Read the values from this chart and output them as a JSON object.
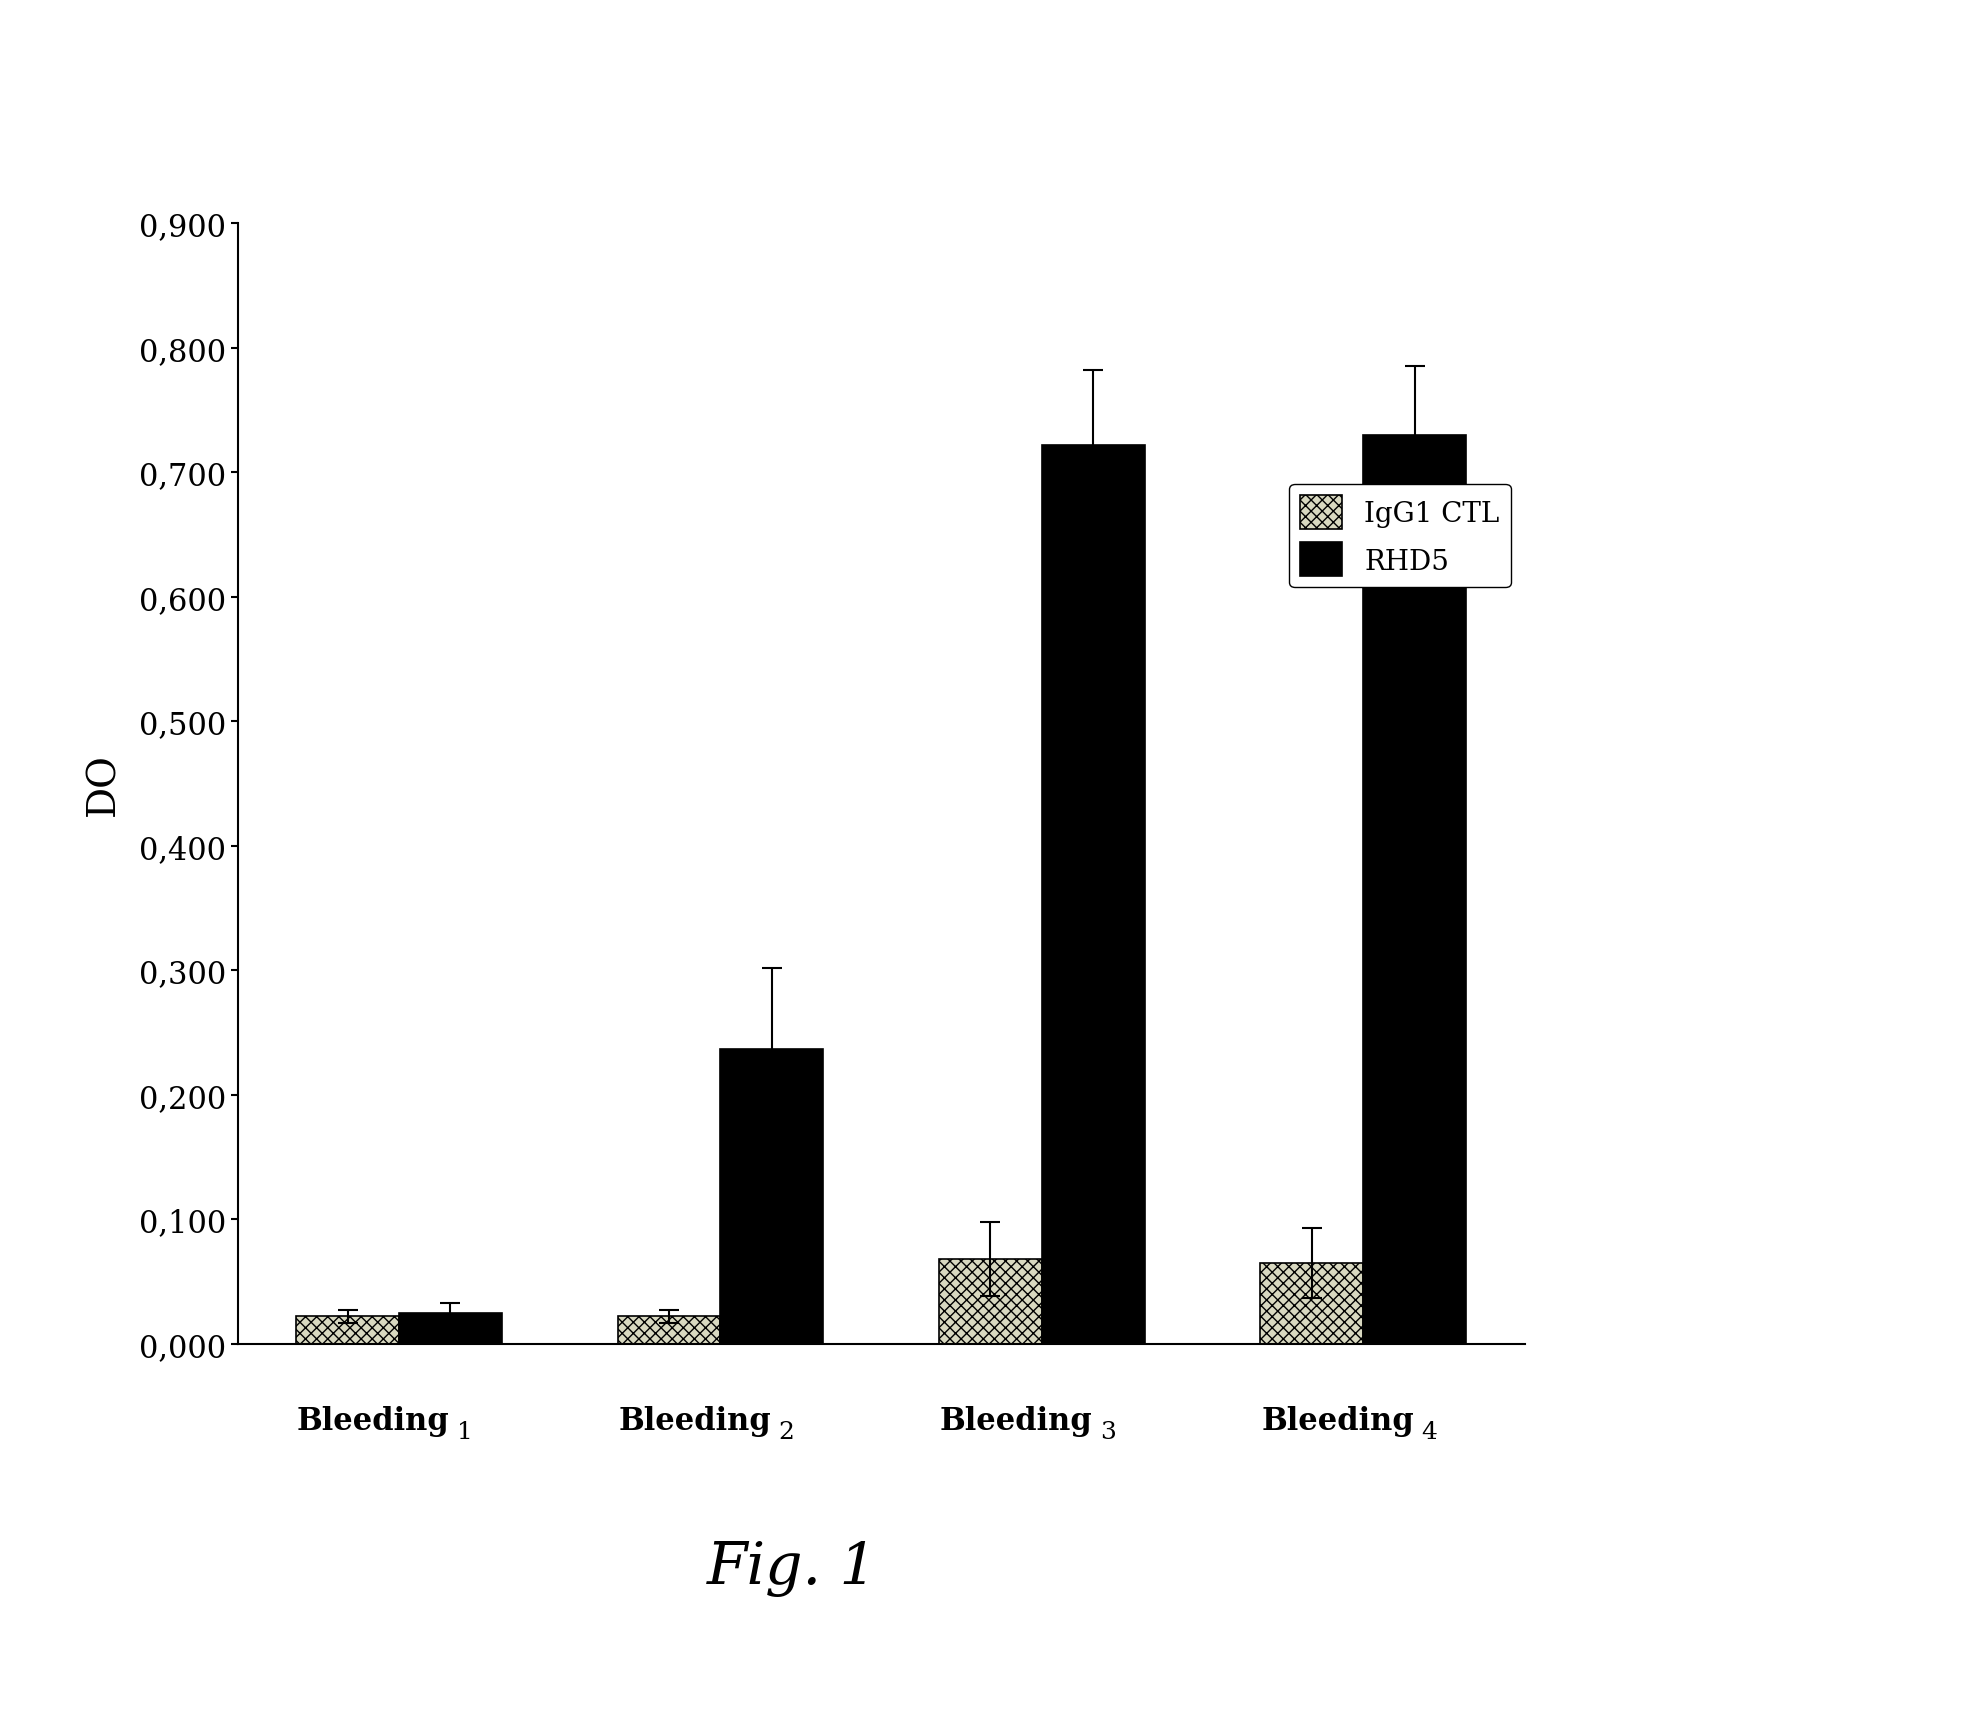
{
  "categories": [
    "Bleeding 1",
    "Bleeding 2",
    "Bleeding 3",
    "Bleeding 4"
  ],
  "igg1_values": [
    0.022,
    0.022,
    0.068,
    0.065
  ],
  "igg1_errors": [
    0.005,
    0.005,
    0.03,
    0.028
  ],
  "rhd5_values": [
    0.025,
    0.237,
    0.722,
    0.73
  ],
  "rhd5_errors": [
    0.008,
    0.065,
    0.06,
    0.055
  ],
  "igg1_color": "#d8d8c0",
  "rhd5_color": "#000000",
  "ylabel": "DO",
  "ylim": [
    0,
    0.9
  ],
  "yticks": [
    0.0,
    0.1,
    0.2,
    0.3,
    0.4,
    0.5,
    0.6,
    0.7,
    0.8,
    0.9
  ],
  "ytick_labels": [
    "0,000",
    "0,100",
    "0,200",
    "0,300",
    "0,400",
    "0,500",
    "0,600",
    "0,700",
    "0,800",
    "0,900"
  ],
  "legend_igg1": "IgG1 CTL",
  "legend_rhd5": "RHD5",
  "fig_label": "Fig. 1",
  "bar_width": 0.32,
  "background_color": "#ffffff"
}
